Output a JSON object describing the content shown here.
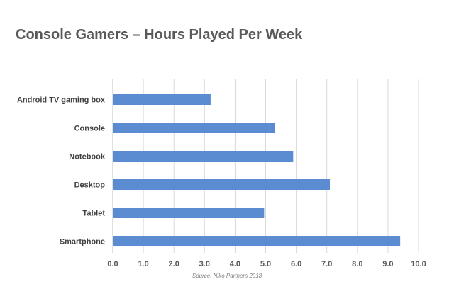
{
  "chart_data": {
    "type": "bar",
    "orientation": "horizontal",
    "title": "Console Gamers – Hours Played Per Week",
    "categories": [
      "Android TV gaming box",
      "Console",
      "Notebook",
      "Desktop",
      "Tablet",
      "Smartphone"
    ],
    "values": [
      3.2,
      5.3,
      5.9,
      7.1,
      4.95,
      9.4
    ],
    "xlim": [
      0,
      10
    ],
    "xticks": [
      "0.0",
      "1.0",
      "2.0",
      "3.0",
      "4.0",
      "5.0",
      "6.0",
      "7.0",
      "8.0",
      "9.0",
      "10.0"
    ],
    "grid": "vertical",
    "bar_color": "#5b8bd0",
    "source": "Source: Niko Partners 2018"
  }
}
